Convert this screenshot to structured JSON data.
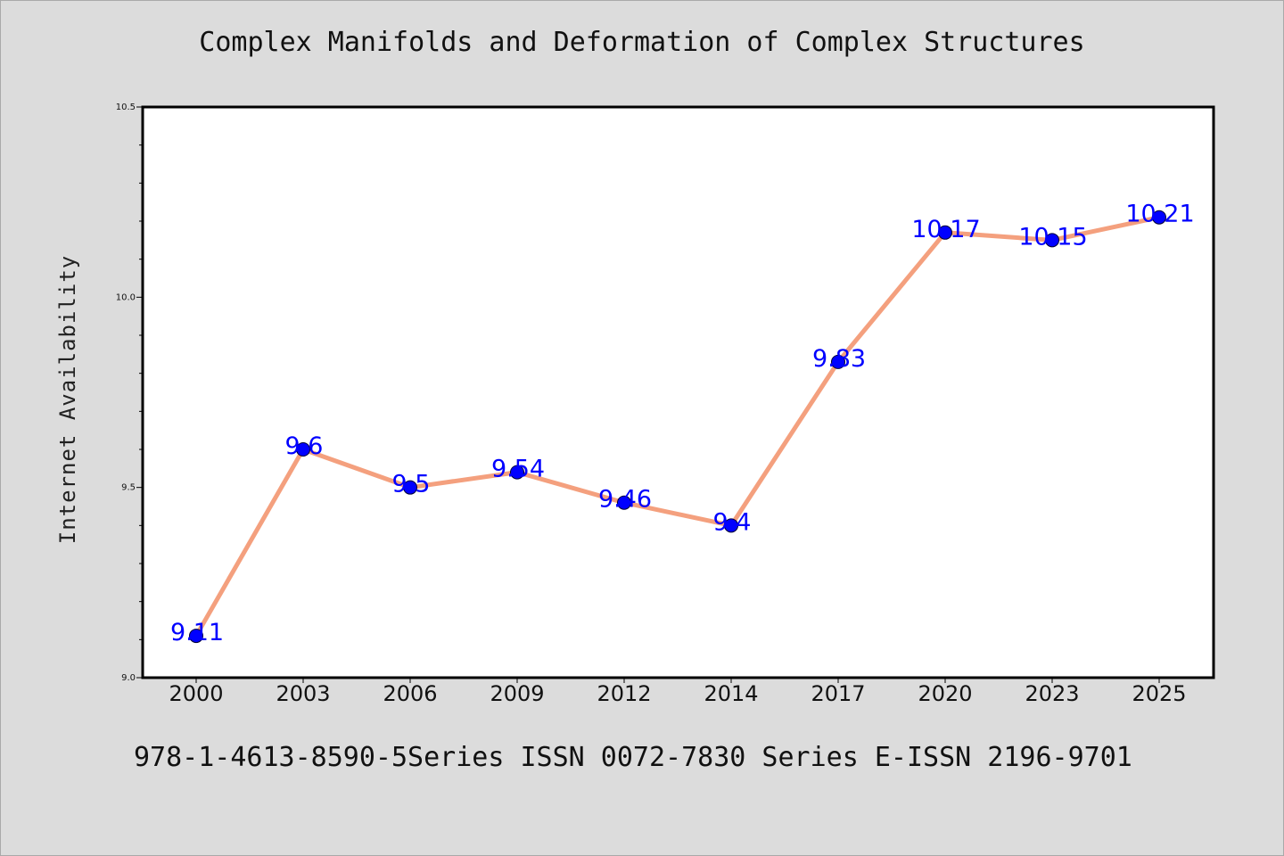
{
  "chart_data": {
    "type": "line",
    "title": "Complex Manifolds and Deformation of Complex Structures",
    "ylabel": "Internet Availability",
    "xlabel": "",
    "footer": "978-1-4613-8590-5Series ISSN 0072-7830 Series E-ISSN 2196-9701",
    "categories": [
      "2000",
      "2003",
      "2006",
      "2009",
      "2012",
      "2014",
      "2017",
      "2020",
      "2023",
      "2025"
    ],
    "series": [
      {
        "values": [
          9.11,
          9.6,
          9.5,
          9.54,
          9.46,
          9.4,
          9.83,
          10.17,
          10.15,
          10.21
        ]
      }
    ],
    "data_labels": [
      "9.11",
      "9.6",
      "9.5",
      "9.54",
      "9.46",
      "9.4",
      "9.83",
      "10.17",
      "10.15",
      "10.21"
    ],
    "ylim": [
      9.0,
      10.5
    ],
    "yticks": [
      "9.0",
      "9.5",
      "10.0",
      "10.5"
    ],
    "grid": false,
    "colors": {
      "line": "#f4a07e",
      "marker": "#0000ff",
      "label": "#0000ff",
      "background": "#dcdcdc",
      "plot_area": "#ffffff"
    }
  }
}
